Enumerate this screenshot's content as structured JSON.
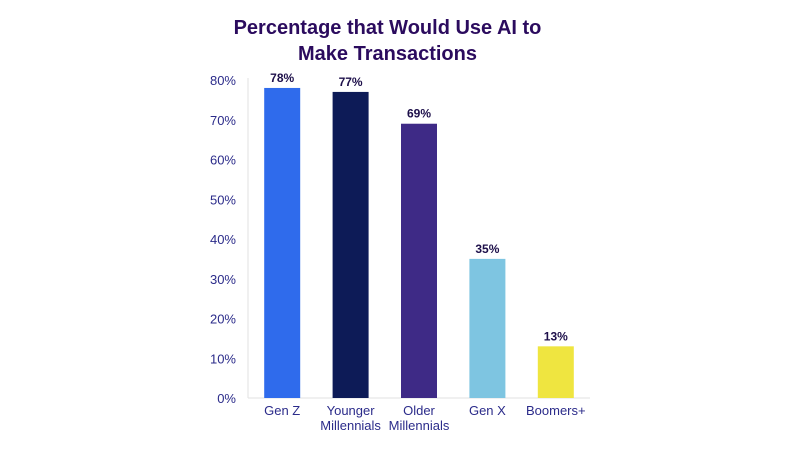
{
  "chart_data": {
    "type": "bar",
    "title": [
      "Percentage that Would Use AI to",
      "Make Transactions"
    ],
    "categories": [
      [
        "Gen Z"
      ],
      [
        "Younger",
        "Millennials"
      ],
      [
        "Older",
        "Millennials"
      ],
      [
        "Gen X"
      ],
      [
        "Boomers+"
      ]
    ],
    "values": [
      78,
      77,
      69,
      35,
      13
    ],
    "data_labels": [
      "78%",
      "77%",
      "69%",
      "35%",
      "13%"
    ],
    "bar_colors": [
      "#2f6bec",
      "#0d1b57",
      "#3e2a86",
      "#7ec5e1",
      "#efe540"
    ],
    "ylim": [
      0,
      80
    ],
    "yticks": [
      "0%",
      "10%",
      "20%",
      "30%",
      "40%",
      "50%",
      "60%",
      "70%",
      "80%"
    ],
    "grid": false,
    "axis_color": "#e2e2e2"
  }
}
